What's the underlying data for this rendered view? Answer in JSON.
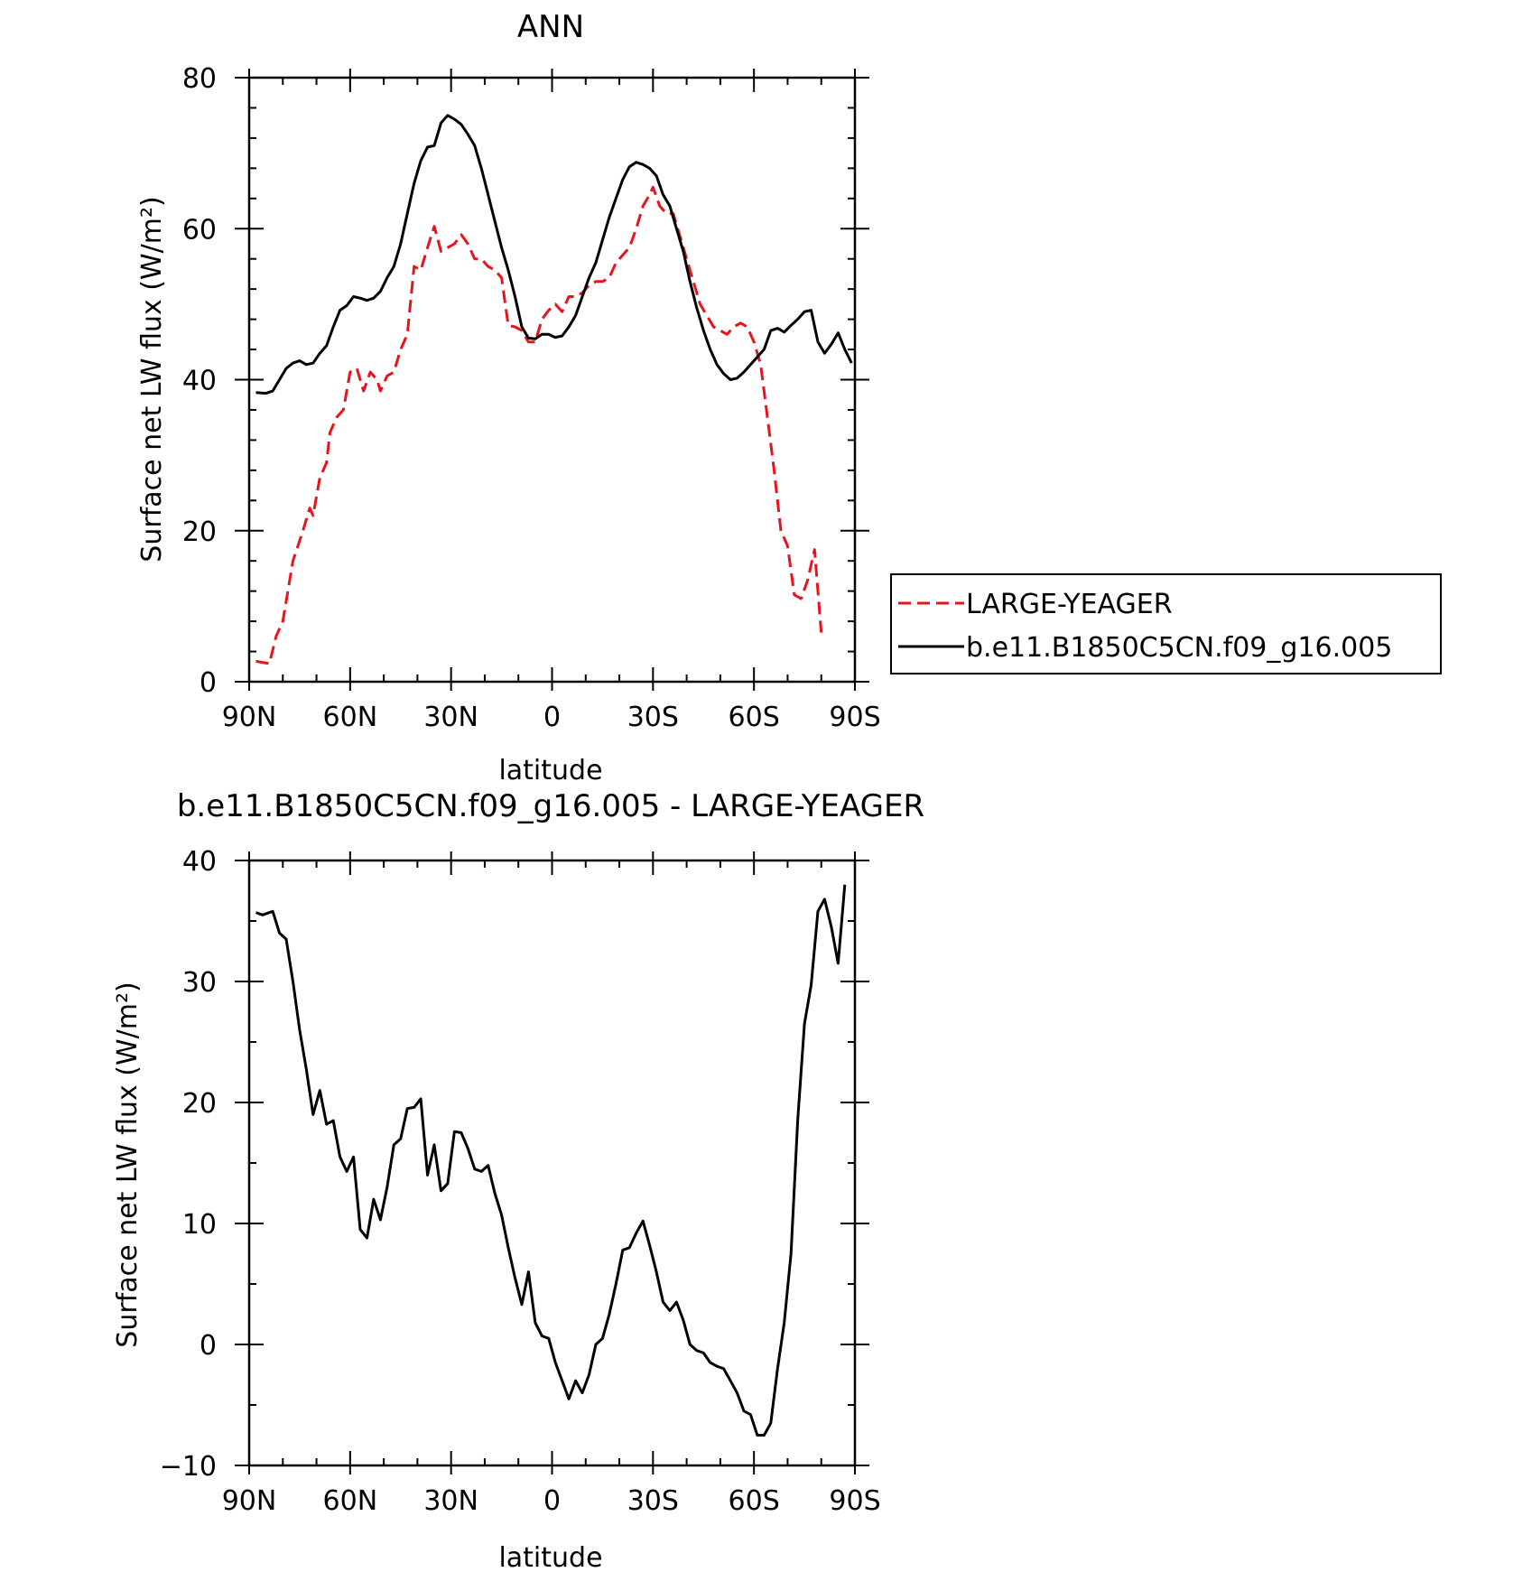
{
  "chart_data": [
    {
      "type": "line",
      "title": "ANN",
      "xlabel": "latitude",
      "ylabel": "Surface net LW flux (W/m²)",
      "xlim": [
        90,
        -90
      ],
      "ylim": [
        0,
        80
      ],
      "x_ticks": [
        90,
        60,
        30,
        0,
        -30,
        -60,
        -90
      ],
      "x_tick_labels": [
        "90N",
        "60N",
        "30N",
        "0",
        "30S",
        "60S",
        "90S"
      ],
      "y_ticks": [
        0,
        20,
        40,
        60,
        80
      ],
      "y_tick_labels": [
        "0",
        "20",
        "40",
        "60",
        "80"
      ],
      "grid": false,
      "legend_position": "right",
      "series": [
        {
          "name": "LARGE-YEAGER",
          "color": "#e8141b",
          "style": "dashed",
          "points": [
            [
              88,
              2.7
            ],
            [
              84,
              2.4
            ],
            [
              82,
              6
            ],
            [
              80,
              8
            ],
            [
              77,
              16
            ],
            [
              74,
              20
            ],
            [
              72,
              23
            ],
            [
              71,
              22
            ],
            [
              69,
              27
            ],
            [
              67,
              29
            ],
            [
              66,
              33
            ],
            [
              64,
              35
            ],
            [
              62,
              36
            ],
            [
              60,
              41
            ],
            [
              58,
              41.5
            ],
            [
              56,
              38.5
            ],
            [
              54,
              41
            ],
            [
              52,
              40
            ],
            [
              51,
              38.5
            ],
            [
              49,
              40.5
            ],
            [
              47,
              41
            ],
            [
              45,
              44
            ],
            [
              43,
              46
            ],
            [
              41,
              55
            ],
            [
              39,
              54.5
            ],
            [
              37,
              57.5
            ],
            [
              35,
              60.3
            ],
            [
              33,
              57
            ],
            [
              31,
              57.5
            ],
            [
              29,
              58
            ],
            [
              27,
              59.2
            ],
            [
              25,
              58
            ],
            [
              23,
              56
            ],
            [
              21,
              56
            ],
            [
              19,
              55
            ],
            [
              17,
              54.5
            ],
            [
              15,
              53.5
            ],
            [
              13,
              47.2
            ],
            [
              11,
              47
            ],
            [
              9,
              46.5
            ],
            [
              7,
              45
            ],
            [
              5,
              45
            ],
            [
              3,
              48
            ],
            [
              1,
              49.2
            ],
            [
              -1,
              50
            ],
            [
              -3,
              49
            ],
            [
              -5,
              51
            ],
            [
              -7,
              51
            ],
            [
              -9,
              51.5
            ],
            [
              -11,
              52.5
            ],
            [
              -13,
              53
            ],
            [
              -15,
              53
            ],
            [
              -17,
              53.5
            ],
            [
              -19,
              55.5
            ],
            [
              -21,
              56.5
            ],
            [
              -23,
              57.5
            ],
            [
              -25,
              60
            ],
            [
              -27,
              63
            ],
            [
              -29,
              64.5
            ],
            [
              -30,
              65.5
            ],
            [
              -32,
              63
            ],
            [
              -34,
              62
            ],
            [
              -36,
              62
            ],
            [
              -38,
              59
            ],
            [
              -40,
              56
            ],
            [
              -42,
              53
            ],
            [
              -44,
              50
            ],
            [
              -46,
              48.5
            ],
            [
              -48,
              47
            ],
            [
              -50,
              46.5
            ],
            [
              -52,
              46
            ],
            [
              -54,
              47
            ],
            [
              -56,
              47.5
            ],
            [
              -58,
              47
            ],
            [
              -60,
              45
            ],
            [
              -62,
              42
            ],
            [
              -64,
              35
            ],
            [
              -66,
              28
            ],
            [
              -68,
              20
            ],
            [
              -70,
              18
            ],
            [
              -72,
              11.5
            ],
            [
              -74,
              11
            ],
            [
              -76,
              13.5
            ],
            [
              -78,
              17.5
            ],
            [
              -80,
              6.5
            ]
          ]
        },
        {
          "name": "b.e11.B1850C5CN.f09_g16.005",
          "color": "#000000",
          "style": "solid",
          "points": [
            [
              88,
              38.3
            ],
            [
              85,
              38.2
            ],
            [
              83,
              38.5
            ],
            [
              81,
              40
            ],
            [
              79,
              41.5
            ],
            [
              77,
              42.2
            ],
            [
              75,
              42.5
            ],
            [
              73,
              42
            ],
            [
              71,
              42.2
            ],
            [
              69,
              43.5
            ],
            [
              67,
              44.5
            ],
            [
              65,
              47
            ],
            [
              63,
              49.2
            ],
            [
              61,
              49.8
            ],
            [
              59,
              51
            ],
            [
              57,
              50.8
            ],
            [
              55,
              50.5
            ],
            [
              53,
              50.8
            ],
            [
              51,
              51.7
            ],
            [
              49,
              53.5
            ],
            [
              47,
              55
            ],
            [
              45,
              58
            ],
            [
              43,
              62
            ],
            [
              41,
              66
            ],
            [
              39,
              69
            ],
            [
              37,
              70.8
            ],
            [
              35,
              71
            ],
            [
              33,
              74
            ],
            [
              31,
              75
            ],
            [
              29,
              74.5
            ],
            [
              27,
              73.8
            ],
            [
              25,
              72.5
            ],
            [
              23,
              71
            ],
            [
              21,
              68
            ],
            [
              19,
              64.5
            ],
            [
              17,
              61
            ],
            [
              15,
              57.5
            ],
            [
              13,
              54.5
            ],
            [
              11,
              51
            ],
            [
              9,
              47
            ],
            [
              7,
              45.5
            ],
            [
              5,
              45.4
            ],
            [
              3,
              46
            ],
            [
              1,
              46
            ],
            [
              -1,
              45.6
            ],
            [
              -3,
              45.8
            ],
            [
              -5,
              47
            ],
            [
              -7,
              48.5
            ],
            [
              -9,
              51
            ],
            [
              -11,
              53.5
            ],
            [
              -13,
              55.5
            ],
            [
              -15,
              58.5
            ],
            [
              -17,
              61.5
            ],
            [
              -19,
              64
            ],
            [
              -21,
              66.5
            ],
            [
              -23,
              68.2
            ],
            [
              -25,
              68.8
            ],
            [
              -27,
              68.5
            ],
            [
              -29,
              68
            ],
            [
              -31,
              67
            ],
            [
              -33,
              64.5
            ],
            [
              -35,
              63
            ],
            [
              -37,
              60
            ],
            [
              -39,
              57
            ],
            [
              -41,
              53
            ],
            [
              -43,
              49.5
            ],
            [
              -45,
              46.5
            ],
            [
              -47,
              44
            ],
            [
              -49,
              42
            ],
            [
              -51,
              40.8
            ],
            [
              -53,
              40
            ],
            [
              -55,
              40.2
            ],
            [
              -57,
              41
            ],
            [
              -59,
              42
            ],
            [
              -61,
              43
            ],
            [
              -63,
              44
            ],
            [
              -65,
              46.5
            ],
            [
              -67,
              46.8
            ],
            [
              -69,
              46.3
            ],
            [
              -71,
              47.2
            ],
            [
              -73,
              48
            ],
            [
              -75,
              49
            ],
            [
              -77,
              49.2
            ],
            [
              -79,
              45
            ],
            [
              -81,
              43.5
            ],
            [
              -83,
              44.7
            ],
            [
              -85,
              46.2
            ],
            [
              -87,
              44
            ],
            [
              -89,
              42.2
            ]
          ]
        }
      ]
    },
    {
      "type": "line",
      "title": "b.e11.B1850C5CN.f09_g16.005 - LARGE-YEAGER",
      "xlabel": "latitude",
      "ylabel": "Surface net LW flux (W/m²)",
      "xlim": [
        90,
        -90
      ],
      "ylim": [
        -10,
        40
      ],
      "x_ticks": [
        90,
        60,
        30,
        0,
        -30,
        -60,
        -90
      ],
      "x_tick_labels": [
        "90N",
        "60N",
        "30N",
        "0",
        "30S",
        "60S",
        "90S"
      ],
      "y_ticks": [
        -10,
        0,
        10,
        20,
        30,
        40
      ],
      "y_tick_labels": [
        "−10",
        "0",
        "10",
        "20",
        "30",
        "40"
      ],
      "grid": false,
      "series": [
        {
          "color": "#000000",
          "style": "solid",
          "points": [
            [
              88,
              35.7
            ],
            [
              86,
              35.5
            ],
            [
              83,
              35.8
            ],
            [
              81,
              34
            ],
            [
              79,
              33.5
            ],
            [
              77,
              30
            ],
            [
              75,
              26
            ],
            [
              73,
              22.7
            ],
            [
              71,
              19
            ],
            [
              69,
              21
            ],
            [
              67,
              18.2
            ],
            [
              65,
              18.5
            ],
            [
              63,
              15.5
            ],
            [
              61,
              14.3
            ],
            [
              59,
              15.5
            ],
            [
              57,
              9.5
            ],
            [
              55,
              8.8
            ],
            [
              53,
              12
            ],
            [
              51,
              10.3
            ],
            [
              49,
              13
            ],
            [
              47,
              16.5
            ],
            [
              45,
              17
            ],
            [
              43,
              19.5
            ],
            [
              41,
              19.6
            ],
            [
              39,
              20.3
            ],
            [
              37,
              14
            ],
            [
              35,
              16.5
            ],
            [
              33,
              12.7
            ],
            [
              31,
              13.3
            ],
            [
              29,
              17.6
            ],
            [
              27,
              17.5
            ],
            [
              25,
              16.2
            ],
            [
              23,
              14.5
            ],
            [
              21,
              14.3
            ],
            [
              19,
              14.8
            ],
            [
              17,
              12.5
            ],
            [
              15,
              10.7
            ],
            [
              13,
              8
            ],
            [
              11,
              5.5
            ],
            [
              9,
              3.3
            ],
            [
              7,
              6
            ],
            [
              5,
              1.8
            ],
            [
              3,
              0.7
            ],
            [
              1,
              0.5
            ],
            [
              -1,
              -1.5
            ],
            [
              -3,
              -3
            ],
            [
              -5,
              -4.5
            ],
            [
              -7,
              -3
            ],
            [
              -9,
              -4
            ],
            [
              -11,
              -2.5
            ],
            [
              -13,
              0
            ],
            [
              -15,
              0.5
            ],
            [
              -17,
              2.5
            ],
            [
              -19,
              5
            ],
            [
              -21,
              7.8
            ],
            [
              -23,
              8
            ],
            [
              -25,
              9.2
            ],
            [
              -27,
              10.2
            ],
            [
              -29,
              8.2
            ],
            [
              -31,
              6
            ],
            [
              -33,
              3.5
            ],
            [
              -35,
              2.8
            ],
            [
              -37,
              3.5
            ],
            [
              -39,
              2
            ],
            [
              -41,
              0
            ],
            [
              -43,
              -0.5
            ],
            [
              -45,
              -0.7
            ],
            [
              -47,
              -1.5
            ],
            [
              -49,
              -1.8
            ],
            [
              -51,
              -2
            ],
            [
              -53,
              -3
            ],
            [
              -55,
              -4
            ],
            [
              -57,
              -5.5
            ],
            [
              -59,
              -5.8
            ],
            [
              -61,
              -7.5
            ],
            [
              -63,
              -7.5
            ],
            [
              -65,
              -6.5
            ],
            [
              -67,
              -2
            ],
            [
              -69,
              1.8
            ],
            [
              -71,
              7.5
            ],
            [
              -73,
              18.5
            ],
            [
              -75,
              26.5
            ],
            [
              -77,
              29.7
            ],
            [
              -79,
              35.8
            ],
            [
              -81,
              36.8
            ],
            [
              -83,
              34.5
            ],
            [
              -85,
              31.5
            ],
            [
              -87,
              38
            ]
          ]
        }
      ]
    }
  ]
}
